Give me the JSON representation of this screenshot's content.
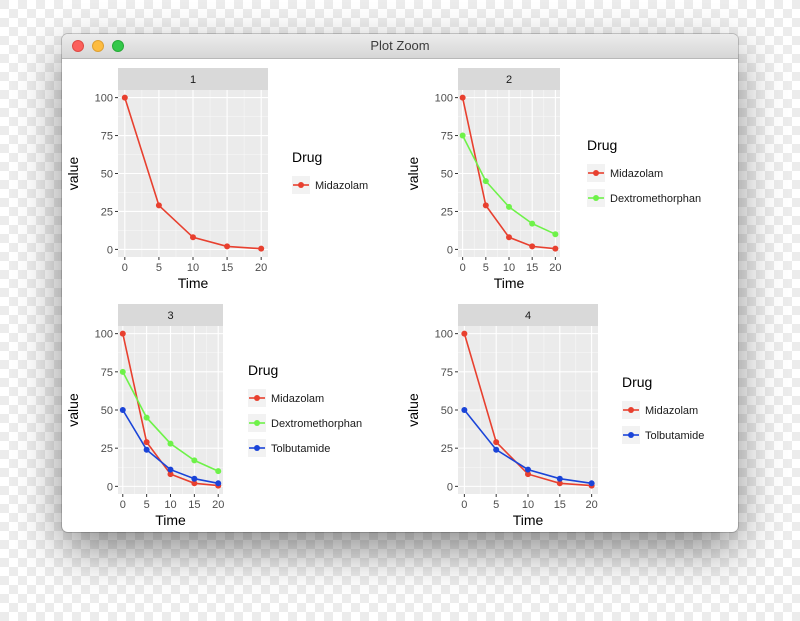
{
  "window": {
    "title": "Plot Zoom"
  },
  "chart_data": [
    {
      "type": "line",
      "panel": "1",
      "title": "1",
      "xlabel": "Time",
      "ylabel": "value",
      "x": [
        0,
        5,
        10,
        15,
        20
      ],
      "xticks": [
        0,
        5,
        10,
        15,
        20
      ],
      "yticks": [
        0,
        25,
        50,
        75,
        100
      ],
      "xlim": [
        -1,
        21
      ],
      "ylim": [
        -5,
        105
      ],
      "legend_title": "Drug",
      "series": [
        {
          "name": "Midazolam",
          "color": "#e8402f",
          "values": [
            100,
            29,
            8,
            2,
            0.5
          ]
        }
      ]
    },
    {
      "type": "line",
      "panel": "2",
      "title": "2",
      "xlabel": "Time",
      "ylabel": "value",
      "x": [
        0,
        5,
        10,
        15,
        20
      ],
      "xticks": [
        0,
        5,
        10,
        15,
        20
      ],
      "yticks": [
        0,
        25,
        50,
        75,
        100
      ],
      "xlim": [
        -1,
        21
      ],
      "ylim": [
        -5,
        105
      ],
      "legend_title": "Drug",
      "series": [
        {
          "name": "Midazolam",
          "color": "#e8402f",
          "values": [
            100,
            29,
            8,
            2,
            0.5
          ]
        },
        {
          "name": "Dextromethorphan",
          "color": "#6ef249",
          "values": [
            75,
            45,
            28,
            17,
            10
          ]
        }
      ]
    },
    {
      "type": "line",
      "panel": "3",
      "title": "3",
      "xlabel": "Time",
      "ylabel": "value",
      "x": [
        0,
        5,
        10,
        15,
        20
      ],
      "xticks": [
        0,
        5,
        10,
        15,
        20
      ],
      "yticks": [
        0,
        25,
        50,
        75,
        100
      ],
      "xlim": [
        -1,
        21
      ],
      "ylim": [
        -5,
        105
      ],
      "legend_title": "Drug",
      "series": [
        {
          "name": "Midazolam",
          "color": "#e8402f",
          "values": [
            100,
            29,
            8,
            2,
            0.5
          ]
        },
        {
          "name": "Dextromethorphan",
          "color": "#6ef249",
          "values": [
            75,
            45,
            28,
            17,
            10
          ]
        },
        {
          "name": "Tolbutamide",
          "color": "#1a44d8",
          "values": [
            50,
            24,
            11,
            5,
            2
          ]
        }
      ]
    },
    {
      "type": "line",
      "panel": "4",
      "title": "4",
      "xlabel": "Time",
      "ylabel": "value",
      "x": [
        0,
        5,
        10,
        15,
        20
      ],
      "xticks": [
        0,
        5,
        10,
        15,
        20
      ],
      "yticks": [
        0,
        25,
        50,
        75,
        100
      ],
      "xlim": [
        -1,
        21
      ],
      "ylim": [
        -5,
        105
      ],
      "legend_title": "Drug",
      "series": [
        {
          "name": "Midazolam",
          "color": "#e8402f",
          "values": [
            100,
            29,
            8,
            2,
            0.5
          ]
        },
        {
          "name": "Tolbutamide",
          "color": "#1a44d8",
          "values": [
            50,
            24,
            11,
            5,
            2
          ]
        }
      ]
    }
  ]
}
